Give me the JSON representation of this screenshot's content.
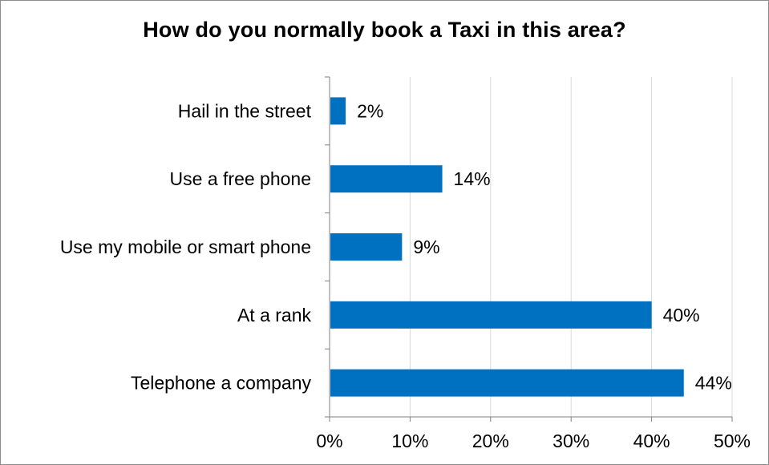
{
  "chart_data": {
    "type": "bar",
    "orientation": "horizontal",
    "title": "How do you normally book a Taxi in this area?",
    "categories": [
      "Hail in the street",
      "Use a free phone",
      "Use my mobile or smart phone",
      "At a rank",
      "Telephone a company"
    ],
    "values": [
      2,
      14,
      9,
      40,
      44
    ],
    "data_labels": [
      "2%",
      "14%",
      "9%",
      "40%",
      "44%"
    ],
    "xlim": [
      0,
      50
    ],
    "xticks": [
      0,
      10,
      20,
      30,
      40,
      50
    ],
    "xtick_labels": [
      "0%",
      "10%",
      "20%",
      "30%",
      "40%",
      "50%"
    ],
    "grid": "vertical",
    "legend": "none",
    "bar_color": "#0070c0",
    "grid_color": "#d9d9d9",
    "axis_color": "#808080"
  }
}
